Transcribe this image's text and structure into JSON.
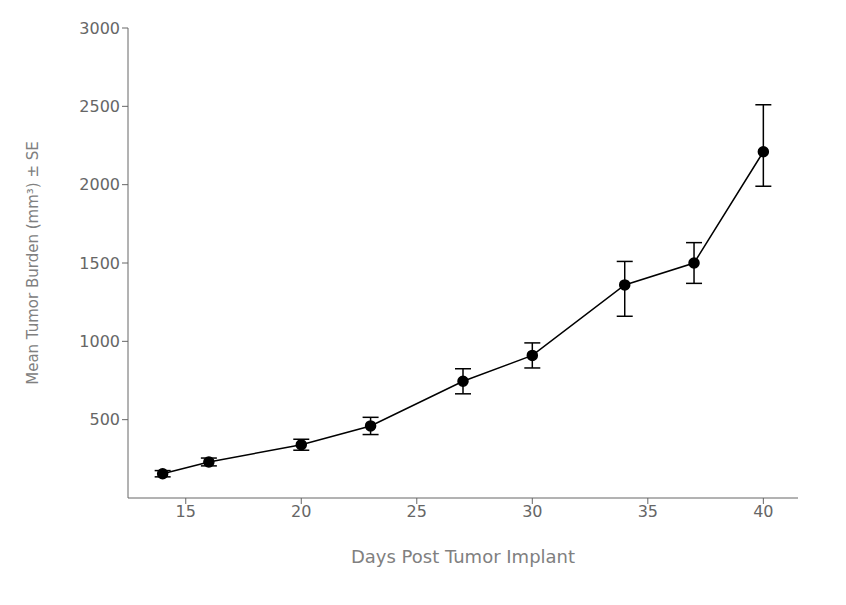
{
  "chart_data": {
    "type": "line",
    "x": [
      14,
      16,
      20,
      23,
      27,
      30,
      34,
      37,
      40
    ],
    "values": [
      155,
      230,
      340,
      460,
      745,
      910,
      1360,
      1500,
      2210
    ],
    "yerr_low": [
      20,
      25,
      35,
      55,
      80,
      80,
      200,
      130,
      220
    ],
    "yerr_high": [
      20,
      25,
      35,
      55,
      80,
      80,
      150,
      130,
      300
    ],
    "xlabel": "Days Post Tumor Implant",
    "ylabel": "Mean Tumor Burden (mm³) ± SE",
    "xlim": [
      12.5,
      41.5
    ],
    "ylim": [
      0,
      3000
    ],
    "xticks": [
      15,
      20,
      25,
      30,
      35,
      40
    ],
    "yticks": [
      500,
      1000,
      1500,
      2000,
      2500,
      3000
    ],
    "color": "#000000",
    "marker": "circle",
    "grid": false
  }
}
